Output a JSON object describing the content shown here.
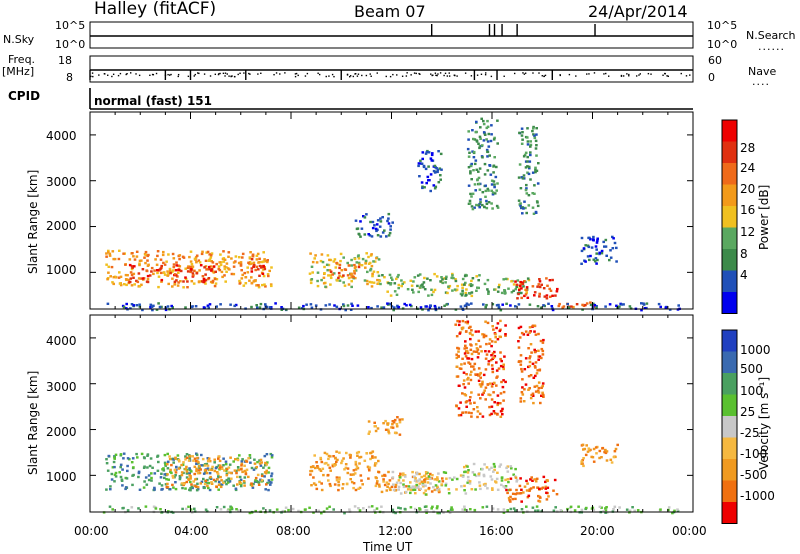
{
  "header": {
    "station": "Halley (fitACF)",
    "beam": "Beam 07",
    "date": "24/Apr/2014"
  },
  "top_panels": {
    "nsky_label": "N.Sky",
    "nsky_ticks": [
      "10^5",
      "10^0"
    ],
    "nsearch_label": "N.Search",
    "nsearch_ticks": [
      "10^5",
      "10^0"
    ],
    "freq_label": "Freq.",
    "freq_unit": "[MHz]",
    "freq_ticks": [
      "18",
      "8"
    ],
    "nave_label": "Nave",
    "nave_ticks": [
      "60",
      "0"
    ],
    "cpid_label": "CPID",
    "cpid_value": "normal (fast) 151"
  },
  "colors": {
    "scale": [
      "#0000ee",
      "#2050b8",
      "#3c8a4a",
      "#5aa860",
      "#f0c020",
      "#f39a1a",
      "#ef6a1a",
      "#e03010",
      "#ee0000"
    ],
    "velocity_scale": [
      "#ee0000",
      "#f07010",
      "#f09a20",
      "#f5b840",
      "#c8c8c8",
      "#5ac030",
      "#4aa060",
      "#3a6ab0",
      "#2040c0"
    ],
    "ground": "#9a9a9a"
  },
  "chart_data": [
    {
      "type": "heatmap",
      "title": "",
      "ylabel": "Slant Range [km]",
      "xlabel": "Time UT",
      "xlim": [
        0,
        24
      ],
      "ylim": [
        200,
        4500
      ],
      "yticks": [
        "4000",
        "3000",
        "2000",
        "1000"
      ],
      "colorbar_label": "Power [dB]",
      "colorbar_ticks": [
        "28",
        "24",
        "20",
        "16",
        "12",
        "8",
        "4"
      ],
      "patches": [
        {
          "t0": 0.6,
          "t1": 7.2,
          "r0": 700,
          "r1": 1500,
          "level": 5
        },
        {
          "t0": 1.5,
          "t1": 5.0,
          "r0": 800,
          "r1": 1200,
          "level": 7
        },
        {
          "t0": 6.3,
          "t1": 7.0,
          "r0": 950,
          "r1": 1350,
          "level": 7
        },
        {
          "t0": 8.7,
          "t1": 11.5,
          "r0": 700,
          "r1": 1450,
          "level": 4
        },
        {
          "t0": 9.5,
          "t1": 10.7,
          "r0": 900,
          "r1": 1250,
          "level": 6
        },
        {
          "t0": 11.5,
          "t1": 15.5,
          "r0": 500,
          "r1": 1000,
          "level": 3
        },
        {
          "t0": 15.5,
          "t1": 17.5,
          "r0": 550,
          "r1": 900,
          "level": 3
        },
        {
          "t0": 16.8,
          "t1": 18.6,
          "r0": 450,
          "r1": 900,
          "level": 7
        },
        {
          "t0": 18.6,
          "t1": 20.5,
          "r0": 250,
          "r1": 400,
          "level": 6
        },
        {
          "t0": 0.5,
          "t1": 23.5,
          "r0": 200,
          "r1": 350,
          "level": 1
        },
        {
          "t0": 15.0,
          "t1": 16.2,
          "r0": 2400,
          "r1": 4400,
          "level": 2
        },
        {
          "t0": 17.0,
          "t1": 17.8,
          "r0": 2300,
          "r1": 4200,
          "level": 2
        },
        {
          "t0": 10.5,
          "t1": 12.0,
          "r0": 1800,
          "r1": 2300,
          "level": 1
        },
        {
          "t0": 13.0,
          "t1": 14.0,
          "r0": 2800,
          "r1": 3700,
          "level": 1
        },
        {
          "t0": 19.5,
          "t1": 21.0,
          "r0": 1200,
          "r1": 1800,
          "level": 1
        }
      ]
    },
    {
      "type": "heatmap",
      "title": "",
      "ylabel": "Slant Range [km]",
      "xlabel": "Time UT",
      "xlim": [
        0,
        24
      ],
      "ylim": [
        200,
        4500
      ],
      "yticks": [
        "4000",
        "3000",
        "2000",
        "1000"
      ],
      "xticks": [
        "00:00",
        "04:00",
        "08:00",
        "12:00",
        "16:00",
        "20:00",
        "00:00"
      ],
      "colorbar_label": "Velocity [m s⁻¹]",
      "colorbar_ticks": [
        "1000",
        "500",
        "100",
        "25",
        "-25",
        "-100",
        "-500",
        "-1000"
      ],
      "patches": [
        {
          "t0": 0.6,
          "t1": 7.2,
          "r0": 700,
          "r1": 1500,
          "level": 6
        },
        {
          "t0": 3.0,
          "t1": 7.0,
          "r0": 750,
          "r1": 1450,
          "level": 2
        },
        {
          "t0": 8.7,
          "t1": 11.5,
          "r0": 700,
          "r1": 1550,
          "level": 2
        },
        {
          "t0": 11.5,
          "t1": 14.0,
          "r0": 600,
          "r1": 1100,
          "level": 2
        },
        {
          "t0": 12.0,
          "t1": 15.0,
          "r0": 600,
          "r1": 1100,
          "level": 4
        },
        {
          "t0": 14.8,
          "t1": 17.0,
          "r0": 700,
          "r1": 1300,
          "level": 4
        },
        {
          "t0": 16.5,
          "t1": 18.6,
          "r0": 450,
          "r1": 1000,
          "level": 1
        },
        {
          "t0": 14.5,
          "t1": 16.5,
          "r0": 2300,
          "r1": 4400,
          "level": 1
        },
        {
          "t0": 17.0,
          "t1": 18.0,
          "r0": 2600,
          "r1": 4300,
          "level": 1
        },
        {
          "t0": 0.5,
          "t1": 23.5,
          "r0": 200,
          "r1": 350,
          "level": 5
        },
        {
          "t0": 11.0,
          "t1": 12.5,
          "r0": 1900,
          "r1": 2300,
          "level": 2
        },
        {
          "t0": 19.5,
          "t1": 21.0,
          "r0": 1200,
          "r1": 1700,
          "level": 2
        }
      ]
    }
  ]
}
